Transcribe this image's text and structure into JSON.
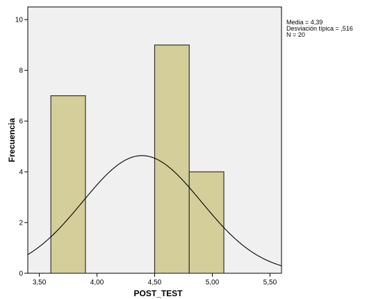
{
  "chart_data": {
    "type": "bar",
    "subtype": "histogram",
    "xlabel": "POST_TEST",
    "ylabel": "Frecuencia",
    "xlim": [
      3.4,
      5.6
    ],
    "ylim": [
      0,
      10.5
    ],
    "x_ticks": [
      {
        "value": 3.5,
        "label": "3,50"
      },
      {
        "value": 4.0,
        "label": "4,00"
      },
      {
        "value": 4.5,
        "label": "4,50"
      },
      {
        "value": 5.0,
        "label": "5,00"
      },
      {
        "value": 5.5,
        "label": "5,50"
      }
    ],
    "y_ticks": [
      {
        "value": 0,
        "label": "0"
      },
      {
        "value": 2,
        "label": "2"
      },
      {
        "value": 4,
        "label": "4"
      },
      {
        "value": 6,
        "label": "6"
      },
      {
        "value": 8,
        "label": "8"
      },
      {
        "value": 10,
        "label": "10"
      }
    ],
    "bins": [
      {
        "x0": 3.6,
        "x1": 3.9,
        "value": 7
      },
      {
        "x0": 4.5,
        "x1": 4.8,
        "value": 9
      },
      {
        "x0": 4.8,
        "x1": 5.1,
        "value": 4
      }
    ],
    "normal_curve": {
      "mean": 4.39,
      "std": 0.516,
      "n": 20,
      "bin_width": 0.3
    },
    "stats": [
      "Media = 4,39",
      "Desviación típica = ,516",
      "N = 20"
    ],
    "grid": false,
    "colors": {
      "plot_background": "#f0f0f0",
      "bar_fill": "#d3ce9a",
      "bar_stroke": "#333333",
      "curve": "#000000"
    }
  }
}
